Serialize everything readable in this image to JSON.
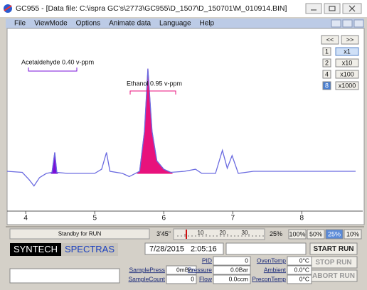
{
  "window": {
    "title": "GC955 - [Data file: C:\\ispra GC's\\2773\\GC955\\D_1507\\D_150701\\M_010914.BIN]"
  },
  "menu": [
    "File",
    "ViewMode",
    "Options",
    "Animate data",
    "Language",
    "Help"
  ],
  "nav": [
    "<<",
    ">>"
  ],
  "zoom": [
    {
      "key": "1",
      "label": "x1"
    },
    {
      "key": "2",
      "label": "x10"
    },
    {
      "key": "4",
      "label": "x100"
    },
    {
      "key": "8",
      "label": "x1000"
    }
  ],
  "plot": {
    "annotations": [
      "Acetaldehyde 0.40 v-ppm",
      "Ethanol 0.95 v-ppm"
    ],
    "xlim": [
      3.73,
      8.78
    ],
    "ylim": [
      -36,
      135
    ],
    "xticks": [
      4,
      5,
      6,
      7,
      8
    ],
    "color": "#6b6be0",
    "x": [
      3.73,
      3.95,
      4.05,
      4.12,
      4.2,
      4.3,
      4.38,
      4.42,
      4.45,
      4.6,
      5.0,
      5.1,
      5.17,
      5.22,
      5.4,
      5.5,
      5.65,
      5.72,
      5.77,
      5.83,
      5.9,
      6.0,
      6.1,
      6.3,
      6.46,
      6.55,
      6.75,
      6.85,
      6.92,
      6.99,
      7.08,
      7.3,
      8.78
    ],
    "y": [
      2,
      1,
      -6,
      -12,
      -4,
      0,
      1,
      20,
      1,
      0,
      0,
      4,
      20,
      2,
      0,
      -3,
      2,
      40,
      100,
      40,
      12,
      4,
      1,
      2,
      4,
      0,
      0,
      22,
      5,
      17,
      0,
      2,
      2
    ],
    "filled_peaks": [
      {
        "from": 4.37,
        "to": 4.46,
        "color": "#7a10d8"
      },
      {
        "from": 5.62,
        "to": 6.12,
        "color": "#e8127c"
      }
    ]
  },
  "status": {
    "message": "Standby for RUN",
    "elapsed": "3'45\"",
    "ruler": [
      "10",
      "20",
      "30"
    ],
    "speed": "25%",
    "speeds": [
      "100%",
      "50%",
      "25%",
      "10%"
    ],
    "brand": "SYNTECH",
    "product": "SPECTRAS",
    "date": "7/28/2015",
    "time": "2:05:16",
    "buttons": [
      "START RUN",
      "STOP RUN",
      "ABORT RUN"
    ],
    "fields": [
      {
        "label": "SamplePress",
        "value": "0mBar"
      },
      {
        "label": "SampleCount",
        "value": "0"
      },
      {
        "label": "PID",
        "value": "0"
      },
      {
        "label": "Pressure",
        "value": "0.0Bar"
      },
      {
        "label": "Flow",
        "value": "0.0ccm"
      },
      {
        "label": "OvenTemp",
        "value": "0°C"
      },
      {
        "label": "Ambient",
        "value": "0.0°C"
      },
      {
        "label": "PreconTemp",
        "value": "0°C"
      }
    ]
  }
}
